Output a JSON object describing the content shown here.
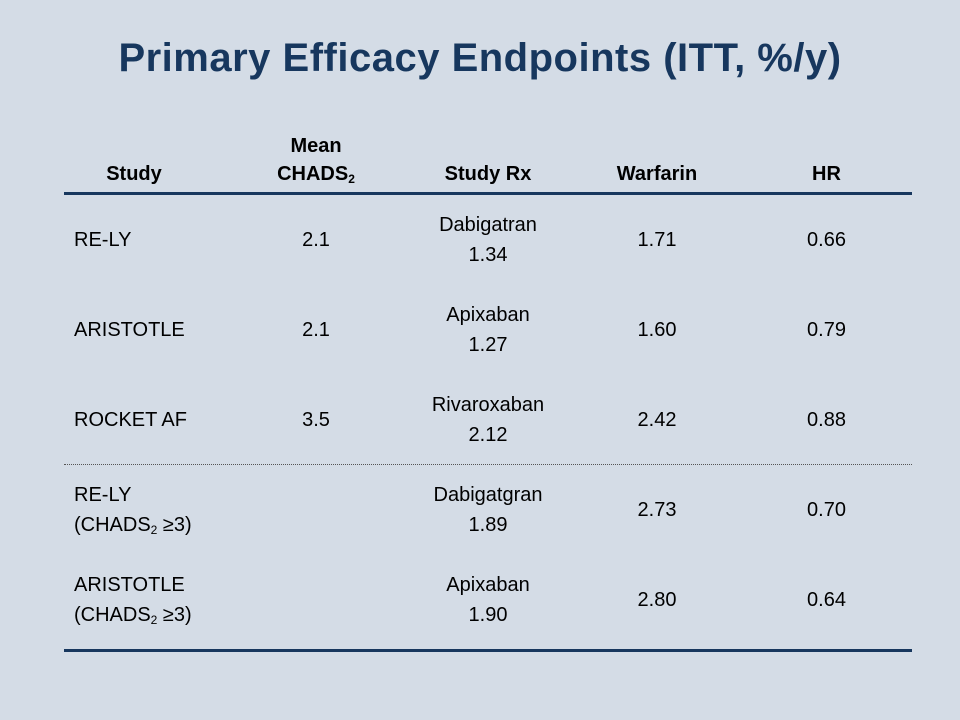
{
  "title": "Primary Efficacy Endpoints (ITT, %/y)",
  "headers": {
    "study": "Study",
    "chads_line1": "Mean",
    "chads_line2": "CHADS",
    "chads_sub": "2",
    "rx": "Study Rx",
    "warfarin": "Warfarin",
    "hr": "HR"
  },
  "rows": [
    {
      "study": "RE-LY",
      "chads": "2.1",
      "rx_name": "Dabigatran",
      "rx_value": "1.34",
      "warfarin": "1.71",
      "hr": "0.66"
    },
    {
      "study": "ARISTOTLE",
      "chads": "2.1",
      "rx_name": "Apixaban",
      "rx_value": "1.27",
      "warfarin": "1.60",
      "hr": "0.79"
    },
    {
      "study": "ROCKET AF",
      "chads": "3.5",
      "rx_name": "Rivaroxaban",
      "rx_value": "2.12",
      "warfarin": "2.42",
      "hr": "0.88"
    },
    {
      "study": "RE-LY",
      "study_sub_pre": "(CHADS",
      "study_sub_num": "2",
      "study_sub_post": " ≥3)",
      "chads": "",
      "rx_name": "Dabigatgran",
      "rx_value": "1.89",
      "warfarin": "2.73",
      "hr": "0.70"
    },
    {
      "study": "ARISTOTLE",
      "study_sub_pre": "(CHADS",
      "study_sub_num": "2",
      "study_sub_post": " ≥3)",
      "chads": "",
      "rx_name": "Apixaban",
      "rx_value": "1.90",
      "warfarin": "2.80",
      "hr": "0.64"
    }
  ],
  "colors": {
    "background": "#d4dce6",
    "title": "#17375e",
    "rule": "#17375e"
  }
}
